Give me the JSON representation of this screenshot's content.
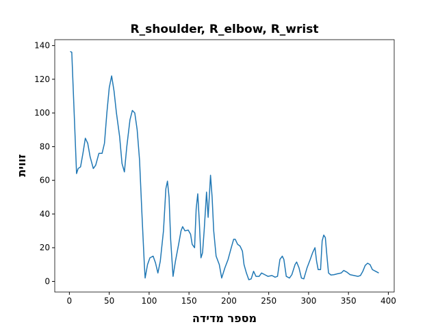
{
  "chart_data": {
    "type": "line",
    "title": "R_shoulder, R_elbow, R_wrist",
    "x_label": "מספר מדידה",
    "y_label": "זווית",
    "x": [
      1,
      3,
      6,
      9,
      11,
      14,
      17,
      20,
      23,
      26,
      30,
      33,
      37,
      41,
      44,
      47,
      50,
      53,
      56,
      59,
      63,
      66,
      69,
      72,
      76,
      79,
      82,
      85,
      88,
      91,
      94,
      95,
      98,
      101,
      105,
      108,
      111,
      114,
      118,
      121,
      123,
      125,
      127,
      130,
      133,
      137,
      140,
      142,
      145,
      149,
      152,
      154,
      157,
      159,
      161,
      163,
      165,
      167,
      169,
      172,
      174,
      177,
      179,
      181,
      184,
      188,
      191,
      195,
      199,
      203,
      206,
      208,
      211,
      214,
      217,
      219,
      222,
      225,
      228,
      231,
      234,
      238,
      241,
      245,
      249,
      254,
      258,
      261,
      264,
      267,
      269,
      272,
      276,
      279,
      283,
      285,
      288,
      291,
      294,
      298,
      302,
      305,
      308,
      310,
      312,
      315,
      317,
      319,
      321,
      323,
      325,
      328,
      332,
      336,
      341,
      344,
      348,
      352,
      357,
      362,
      365,
      368,
      371,
      374,
      377,
      380,
      384,
      388
    ],
    "series": [
      {
        "name": "R_shoulder, R_elbow, R_wrist",
        "color": "#1f77b4",
        "values": [
          136.5,
          136,
          100,
          64,
          67,
          68,
          76,
          85,
          82,
          74,
          67,
          69,
          76,
          76,
          82,
          100,
          115,
          122,
          113,
          100,
          86,
          70,
          65,
          80,
          96,
          101.5,
          100,
          90,
          72,
          40,
          10,
          2,
          10,
          14,
          15,
          11,
          5,
          12,
          30,
          55,
          59.5,
          50,
          25,
          3,
          12,
          22,
          30,
          32.5,
          30,
          30.5,
          28,
          22,
          20,
          43,
          52,
          35,
          14,
          17,
          30,
          53,
          38,
          63,
          50,
          30,
          15,
          10,
          2,
          8,
          13,
          20,
          25,
          25,
          22,
          21,
          18,
          10,
          5,
          1,
          1.5,
          6,
          3,
          3,
          5,
          4,
          3,
          3.5,
          2.5,
          3,
          13,
          15,
          13,
          3,
          2,
          4,
          10,
          11.5,
          8,
          2,
          1.5,
          8,
          13,
          17,
          20,
          12,
          7,
          7,
          24,
          27.5,
          26,
          15,
          5,
          3.8,
          4,
          4.5,
          5,
          6.5,
          5.5,
          4,
          3.5,
          3,
          3.5,
          6,
          9.5,
          10.8,
          10,
          7,
          6,
          5
        ]
      }
    ],
    "xlim": [
      -18.35,
      407.35
    ],
    "ylim": [
      -6.3,
      143.5
    ],
    "xticks": [
      0,
      50,
      100,
      150,
      200,
      250,
      300,
      350,
      400
    ],
    "yticks": [
      0,
      20,
      40,
      60,
      80,
      100,
      120,
      140
    ],
    "grid": false
  }
}
